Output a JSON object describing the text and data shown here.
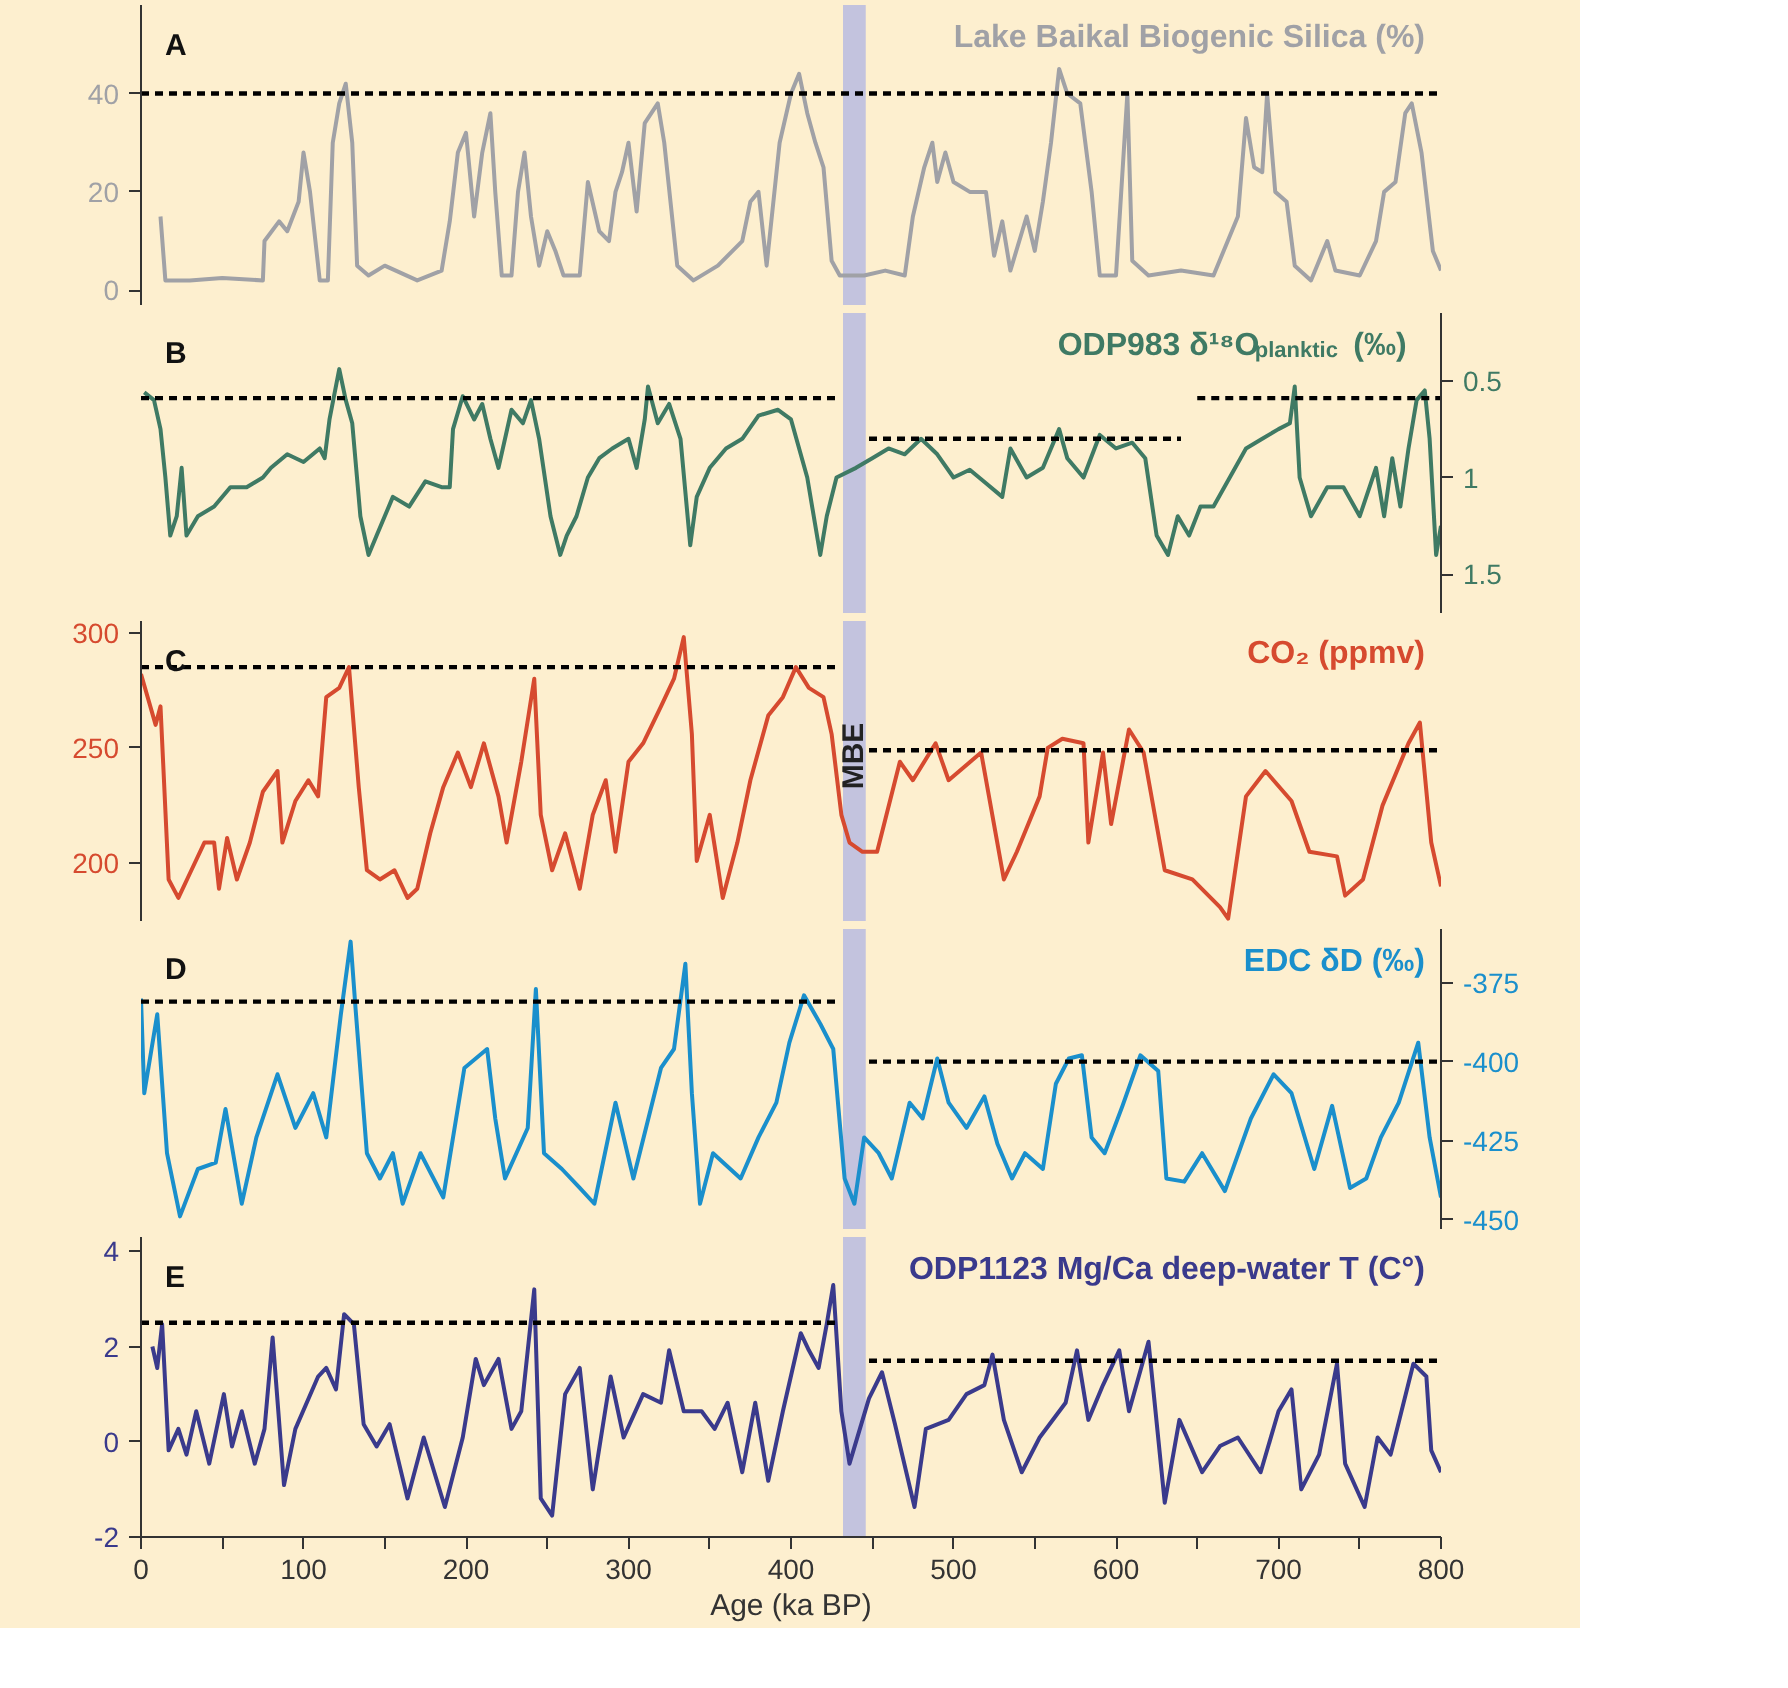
{
  "chart_data": [
    {
      "type": "line",
      "annotations": [
        "A"
      ],
      "tick_labels": "y",
      "xlim": [
        0,
        800
      ],
      "ylim": [
        -3,
        58
      ],
      "yticks": [
        0,
        20,
        40
      ],
      "bands": [
        {
          "axis": "x",
          "from": 432,
          "to": 446,
          "color": "#c3c3de"
        }
      ],
      "series": [
        {
          "name": "Lake Baikal Biogenic Silica (%)",
          "color": "#a0a1a6",
          "x": [
            12,
            15,
            30,
            50,
            75,
            76,
            85,
            90,
            97,
            100,
            104,
            110,
            115,
            118,
            122,
            126,
            130,
            133,
            140,
            150,
            170,
            185,
            190,
            195,
            200,
            205,
            210,
            215,
            218,
            222,
            228,
            232,
            236,
            240,
            245,
            250,
            255,
            260,
            270,
            275,
            282,
            288,
            292,
            296,
            300,
            305,
            310,
            318,
            322,
            330,
            340,
            355,
            370,
            375,
            380,
            385,
            393,
            400,
            405,
            410,
            415,
            420,
            425,
            430,
            445,
            458,
            470,
            475,
            482,
            487,
            490,
            495,
            500,
            510,
            520,
            525,
            530,
            535,
            545,
            550,
            555,
            560,
            565,
            570,
            578,
            585,
            590,
            600,
            607,
            610,
            620,
            640,
            660,
            675,
            680,
            685,
            690,
            693,
            698,
            705,
            710,
            720,
            730,
            735,
            750,
            760,
            765,
            772,
            778,
            782,
            788,
            795,
            800
          ],
          "values": [
            15,
            2,
            2,
            2.5,
            2,
            10,
            14,
            12,
            18,
            28,
            20,
            2,
            2,
            30,
            38,
            42,
            30,
            5,
            3,
            5,
            2,
            4,
            14,
            28,
            32,
            15,
            28,
            36,
            20,
            3,
            3,
            20,
            28,
            15,
            5,
            12,
            8,
            3,
            3,
            22,
            12,
            10,
            20,
            24,
            30,
            16,
            34,
            38,
            30,
            5,
            2,
            5,
            10,
            18,
            20,
            5,
            30,
            40,
            44,
            36,
            30,
            25,
            6,
            3,
            3,
            4,
            3,
            15,
            25,
            30,
            22,
            28,
            22,
            20,
            20,
            7,
            14,
            4,
            15,
            8,
            18,
            30,
            45,
            40,
            38,
            20,
            3,
            3,
            40,
            6,
            3,
            4,
            3,
            15,
            35,
            25,
            24,
            40,
            20,
            18,
            5,
            2,
            10,
            4,
            3,
            10,
            20,
            22,
            36,
            38,
            28,
            8,
            4
          ]
        },
        {
          "color": "#000000",
          "line_style": "dashed",
          "x": [
            0,
            800
          ],
          "values": [
            40,
            40
          ]
        }
      ]
    },
    {
      "type": "line",
      "annotations": [
        "B"
      ],
      "tick_labels": "y",
      "xlim": [
        0,
        800
      ],
      "y2lim": [
        1.7,
        0.15
      ],
      "y2ticks": [
        0.5,
        1,
        1.5
      ],
      "bands": [
        {
          "axis": "x",
          "from": 432,
          "to": 446,
          "color": "#c3c3de"
        }
      ],
      "series": [
        {
          "name": "ODP983 δ¹⁸O$_{planktic}$ (‰)",
          "color": "#3f7a64",
          "axis": "y2",
          "x": [
            2,
            8,
            12,
            15,
            18,
            22,
            25,
            28,
            35,
            45,
            55,
            65,
            75,
            80,
            90,
            100,
            110,
            113,
            116,
            122,
            126,
            130,
            135,
            140,
            145,
            155,
            165,
            175,
            185,
            190,
            192,
            198,
            205,
            210,
            215,
            220,
            228,
            235,
            240,
            245,
            252,
            258,
            262,
            268,
            275,
            282,
            290,
            300,
            305,
            310,
            312,
            318,
            325,
            332,
            338,
            342,
            350,
            360,
            370,
            380,
            392,
            400,
            410,
            418,
            422,
            428,
            440,
            450,
            460,
            470,
            480,
            490,
            500,
            510,
            520,
            530,
            535,
            545,
            555,
            565,
            570,
            580,
            590,
            600,
            610,
            618,
            625,
            632,
            638,
            645,
            652,
            660,
            670,
            680,
            690,
            700,
            707,
            710,
            713,
            720,
            730,
            740,
            750,
            760,
            765,
            770,
            775,
            780,
            785,
            790,
            793,
            797,
            800
          ],
          "values": [
            0.56,
            0.6,
            0.75,
            1.0,
            1.3,
            1.2,
            0.95,
            1.3,
            1.2,
            1.15,
            1.05,
            1.05,
            1.0,
            0.95,
            0.88,
            0.92,
            0.85,
            0.9,
            0.7,
            0.44,
            0.6,
            0.72,
            1.2,
            1.4,
            1.3,
            1.1,
            1.15,
            1.02,
            1.05,
            1.05,
            0.75,
            0.58,
            0.7,
            0.62,
            0.8,
            0.95,
            0.65,
            0.72,
            0.6,
            0.8,
            1.2,
            1.4,
            1.3,
            1.2,
            1.0,
            0.9,
            0.85,
            0.8,
            0.95,
            0.7,
            0.53,
            0.72,
            0.62,
            0.8,
            1.35,
            1.1,
            0.95,
            0.85,
            0.8,
            0.68,
            0.65,
            0.7,
            1.0,
            1.4,
            1.2,
            1.0,
            0.95,
            0.9,
            0.85,
            0.88,
            0.8,
            0.88,
            1.0,
            0.96,
            1.03,
            1.1,
            0.85,
            1.0,
            0.95,
            0.75,
            0.9,
            1.0,
            0.78,
            0.85,
            0.82,
            0.9,
            1.3,
            1.4,
            1.2,
            1.3,
            1.15,
            1.15,
            1.0,
            0.85,
            0.8,
            0.75,
            0.72,
            0.53,
            1.0,
            1.2,
            1.05,
            1.05,
            1.2,
            0.95,
            1.2,
            0.9,
            1.15,
            0.85,
            0.6,
            0.55,
            0.8,
            1.4,
            1.25
          ]
        },
        {
          "color": "#000000",
          "line_style": "dashed",
          "axis": "y2",
          "x": [
            0,
            430
          ],
          "values": [
            0.59,
            0.59
          ]
        },
        {
          "color": "#000000",
          "line_style": "dashed",
          "axis": "y2",
          "x": [
            448,
            640
          ],
          "values": [
            0.8,
            0.8
          ]
        },
        {
          "color": "#000000",
          "line_style": "dashed",
          "axis": "y2",
          "x": [
            650,
            800
          ],
          "values": [
            0.59,
            0.59
          ]
        }
      ]
    },
    {
      "type": "line",
      "annotations": [
        "C"
      ],
      "tick_labels": "y",
      "xlim": [
        0,
        800
      ],
      "ylim": [
        175,
        305
      ],
      "yticks": [
        200,
        250,
        300
      ],
      "bands": [
        {
          "axis": "x",
          "from": 432,
          "to": 446,
          "color": "#c3c3de",
          "label": "MBE"
        }
      ],
      "series": [
        {
          "name": "CO₂ (ppmv)",
          "color": "#d64a2f",
          "x": [
            0,
            9,
            12,
            17,
            23,
            31,
            39,
            45,
            48,
            53,
            59,
            67,
            75,
            84,
            87,
            95,
            103,
            109,
            114,
            122,
            128,
            134,
            139,
            147,
            156,
            164,
            170,
            178,
            186,
            195,
            203,
            211,
            220,
            225,
            234,
            242,
            246,
            253,
            261,
            270,
            278,
            286,
            292,
            300,
            309,
            320,
            328,
            334,
            339,
            342,
            350,
            358,
            367,
            375,
            386,
            395,
            403,
            411,
            420,
            425,
            431,
            436,
            444,
            453,
            467,
            475,
            489,
            497,
            517,
            531,
            539,
            553,
            558,
            567,
            580,
            583,
            592,
            597,
            608,
            617,
            630,
            647,
            664,
            669,
            680,
            692,
            708,
            719,
            736,
            741,
            752,
            764,
            780,
            787,
            794,
            800
          ],
          "values": [
            282,
            260,
            268,
            193,
            185,
            197,
            209,
            209,
            189,
            211,
            193,
            209,
            231,
            240,
            209,
            227,
            236,
            229,
            272,
            276,
            285,
            233,
            197,
            193,
            197,
            185,
            189,
            213,
            233,
            248,
            233,
            252,
            229,
            209,
            244,
            280,
            221,
            197,
            213,
            189,
            221,
            236,
            205,
            244,
            252,
            268,
            280,
            298,
            256,
            201,
            221,
            185,
            209,
            236,
            264,
            272,
            285,
            276,
            272,
            256,
            221,
            209,
            205,
            205,
            244,
            236,
            252,
            236,
            248,
            193,
            205,
            229,
            250,
            254,
            252,
            209,
            248,
            217,
            258,
            248,
            197,
            193,
            181,
            176,
            229,
            240,
            227,
            205,
            203,
            186,
            193,
            225,
            252,
            261,
            209,
            190
          ]
        },
        {
          "color": "#000000",
          "line_style": "dashed",
          "x": [
            0,
            430
          ],
          "values": [
            285,
            285
          ]
        },
        {
          "color": "#000000",
          "line_style": "dashed",
          "x": [
            448,
            800
          ],
          "values": [
            249,
            249
          ]
        }
      ]
    },
    {
      "type": "line",
      "annotations": [
        "D"
      ],
      "tick_labels": "y",
      "xlim": [
        0,
        800
      ],
      "y2lim": [
        -453,
        -358
      ],
      "y2ticks": [
        -375,
        -400,
        -425,
        -450
      ],
      "bands": [
        {
          "axis": "x",
          "from": 432,
          "to": 446,
          "color": "#c3c3de"
        }
      ],
      "series": [
        {
          "name": "EDC δD (‰)",
          "color": "#1a8fcc",
          "axis": "y2",
          "x": [
            0,
            2,
            10,
            16,
            24,
            35,
            46,
            52,
            62,
            71,
            84,
            95,
            106,
            114,
            123,
            129,
            132,
            139,
            147,
            155,
            161,
            172,
            186,
            199,
            213,
            218,
            224,
            238,
            243,
            248,
            259,
            270,
            279,
            292,
            303,
            320,
            328,
            335,
            339,
            344,
            352,
            369,
            380,
            391,
            399,
            408,
            418,
            426,
            433,
            439,
            445,
            454,
            462,
            473,
            481,
            490,
            497,
            508,
            519,
            527,
            536,
            544,
            555,
            563,
            571,
            579,
            585,
            593,
            604,
            615,
            626,
            631,
            642,
            653,
            667,
            683,
            697,
            708,
            722,
            733,
            744,
            754,
            763,
            774,
            786,
            793,
            800
          ],
          "values": [
            -380,
            -410,
            -385,
            -429,
            -449,
            -434,
            -432,
            -415,
            -445,
            -424,
            -404,
            -421,
            -410,
            -424,
            -385,
            -362,
            -383,
            -429,
            -437,
            -429,
            -445,
            -429,
            -443,
            -402,
            -396,
            -418,
            -437,
            -421,
            -377,
            -429,
            -434,
            -440,
            -445,
            -413,
            -437,
            -402,
            -396,
            -369,
            -410,
            -445,
            -429,
            -437,
            -424,
            -413,
            -394,
            -379,
            -388,
            -396,
            -437,
            -445,
            -424,
            -429,
            -437,
            -413,
            -418,
            -399,
            -413,
            -421,
            -411,
            -426,
            -437,
            -429,
            -434,
            -407,
            -399,
            -398,
            -424,
            -429,
            -414,
            -398,
            -403,
            -437,
            -438,
            -429,
            -441,
            -418,
            -404,
            -410,
            -434,
            -414,
            -440,
            -437,
            -424,
            -413,
            -394,
            -424,
            -443
          ]
        },
        {
          "color": "#000000",
          "line_style": "dashed",
          "axis": "y2",
          "x": [
            0,
            430
          ],
          "values": [
            -381,
            -381
          ]
        },
        {
          "color": "#000000",
          "line_style": "dashed",
          "axis": "y2",
          "x": [
            448,
            800
          ],
          "values": [
            -400,
            -400
          ]
        }
      ]
    },
    {
      "type": "line",
      "annotations": [
        "E"
      ],
      "xlabel": "Age (ka BP)",
      "xlim": [
        0,
        800
      ],
      "ylim": [
        -2,
        4.3
      ],
      "yticks": [
        -2,
        0,
        2,
        4
      ],
      "xticks": [
        0,
        {
          "value": 50,
          "label": null
        },
        100,
        {
          "value": 150,
          "label": null
        },
        200,
        {
          "value": 250,
          "label": null
        },
        300,
        {
          "value": 350,
          "label": null
        },
        400,
        {
          "value": 450,
          "label": null
        },
        500,
        {
          "value": 550,
          "label": null
        },
        600,
        {
          "value": 650,
          "label": null
        },
        700,
        {
          "value": 750,
          "label": null
        },
        800
      ],
      "bands": [
        {
          "axis": "x",
          "from": 432,
          "to": 446,
          "color": "#c3c3de"
        }
      ],
      "series": [
        {
          "name": "ODP1123 Mg/Ca deep-water T (C°)",
          "color": "#3a3a8c",
          "x": [
            7,
            10,
            13,
            17,
            23,
            28,
            34,
            42,
            51,
            56,
            62,
            70,
            76,
            81,
            88,
            95,
            109,
            114,
            120,
            125,
            131,
            137,
            145,
            153,
            164,
            174,
            187,
            198,
            206,
            211,
            220,
            228,
            234,
            242,
            246,
            253,
            261,
            270,
            278,
            289,
            297,
            309,
            320,
            325,
            334,
            345,
            353,
            361,
            370,
            378,
            386,
            395,
            406,
            411,
            417,
            422,
            426,
            431,
            436,
            448,
            456,
            464,
            476,
            483,
            497,
            508,
            519,
            524,
            531,
            542,
            553,
            569,
            576,
            583,
            592,
            602,
            608,
            620,
            630,
            639,
            653,
            664,
            675,
            689,
            700,
            708,
            714,
            725,
            736,
            741,
            753,
            761,
            769,
            783,
            791,
            794,
            800
          ],
          "values": [
            2.0,
            1.55,
            2.47,
            -0.18,
            0.27,
            -0.27,
            0.64,
            -0.46,
            1.0,
            -0.1,
            0.64,
            -0.46,
            0.27,
            2.19,
            -0.91,
            0.27,
            1.37,
            1.55,
            1.1,
            2.68,
            2.47,
            0.37,
            -0.1,
            0.37,
            -1.19,
            0.09,
            -1.37,
            0.09,
            1.74,
            1.19,
            1.74,
            0.27,
            0.64,
            3.2,
            -1.19,
            -1.55,
            1.0,
            1.55,
            -1.0,
            1.37,
            0.09,
            1.0,
            0.82,
            1.92,
            0.64,
            0.64,
            0.27,
            0.82,
            -0.64,
            0.82,
            -0.82,
            0.64,
            2.28,
            1.92,
            1.55,
            2.47,
            3.29,
            0.64,
            -0.46,
            0.91,
            1.46,
            0.37,
            -1.37,
            0.27,
            0.46,
            1.0,
            1.19,
            1.83,
            0.46,
            -0.64,
            0.09,
            0.82,
            1.92,
            0.46,
            1.19,
            1.92,
            0.64,
            2.1,
            -1.28,
            0.46,
            -0.64,
            -0.09,
            0.09,
            -0.64,
            0.64,
            1.1,
            -1.0,
            -0.27,
            1.64,
            -0.46,
            -1.37,
            0.09,
            -0.27,
            1.64,
            1.37,
            -0.18,
            -0.64
          ]
        },
        {
          "color": "#000000",
          "line_style": "dashed",
          "x": [
            0,
            430
          ],
          "values": [
            2.5,
            2.5
          ]
        },
        {
          "color": "#000000",
          "line_style": "dashed",
          "x": [
            448,
            800
          ],
          "values": [
            1.7,
            1.7
          ]
        }
      ]
    }
  ]
}
